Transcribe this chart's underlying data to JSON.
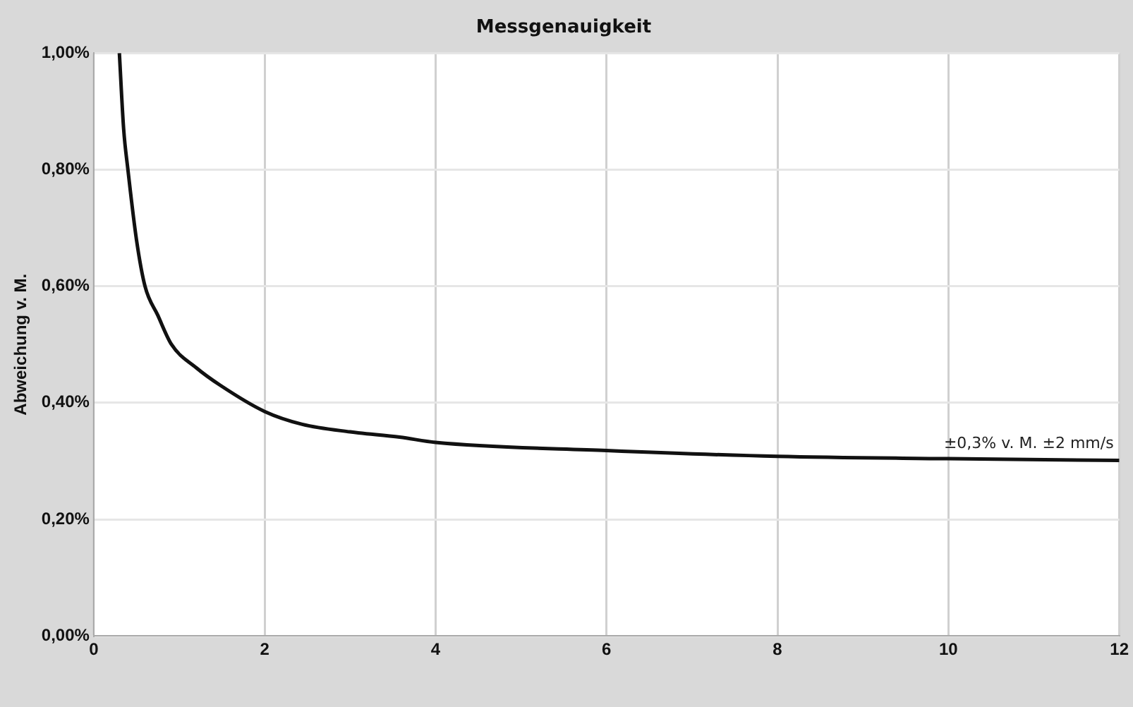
{
  "chart_data": {
    "type": "line",
    "title": "Messgenauigkeit",
    "ylabel": "Abweichung v. M.",
    "series": [
      {
        "color": "#111111",
        "x": [
          0.3,
          0.35,
          0.4,
          0.5,
          0.6,
          0.75,
          0.91,
          1.2,
          1.48,
          2,
          2.44,
          3,
          3.58,
          4,
          6,
          8,
          10,
          12
        ],
        "values": [
          1.0,
          0.87,
          0.8,
          0.68,
          0.6,
          0.55,
          0.5,
          0.46,
          0.43,
          0.385,
          0.363,
          0.35,
          0.341,
          0.332,
          0.318,
          0.308,
          0.304,
          0.301
        ]
      }
    ],
    "xlim": [
      0,
      12
    ],
    "xticks": [
      0,
      2,
      4,
      6,
      8,
      10,
      12
    ],
    "ylim": [
      0,
      1
    ],
    "yticks": [
      {
        "value": 0,
        "label": "0,00%"
      },
      {
        "value": 0.2,
        "label": "0,20%"
      },
      {
        "value": 0.4,
        "label": "0,40%"
      },
      {
        "value": 0.6,
        "label": "0,60%"
      },
      {
        "value": 0.8,
        "label": "0,80%"
      },
      {
        "value": 1,
        "label": "1,00%"
      }
    ],
    "annotations": [
      {
        "text": "±0,3% v. M. ±2 mm/s",
        "x": 12,
        "y": 0.301
      }
    ],
    "grid": true,
    "legend": false,
    "marker": "none",
    "line_style": "solid"
  }
}
